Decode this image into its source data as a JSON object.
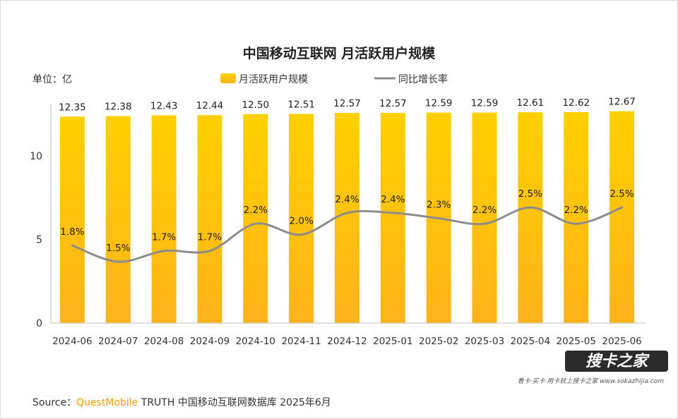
{
  "title": "中国移动互联网 月活跃用户规模",
  "unit_label": "单位：亿",
  "source": {
    "prefix": "Source：",
    "brand": "QuestMobile",
    "rest": " TRUTH 中国移动互联网数据库 2025年6月"
  },
  "watermark": {
    "logo_text": "搜卡之家",
    "sub_text": "看卡·买卡·用卡就上搜卡之家  www.sokazhijia.com"
  },
  "colors": {
    "bar_top": "#FFD000",
    "bar_bottom": "#FFB31A",
    "line": "#8C8C8C"
  },
  "chart_data": {
    "type": "bar",
    "title": "中国移动互联网 月活跃用户规模",
    "ylabel": "单位：亿",
    "ylim": [
      0,
      13
    ],
    "yticks": [
      "0",
      "5",
      "10"
    ],
    "grid": false,
    "legend_position": "top",
    "categories": [
      "2024-06",
      "2024-07",
      "2024-08",
      "2024-09",
      "2024-10",
      "2024-11",
      "2024-12",
      "2025-01",
      "2025-02",
      "2025-03",
      "2025-04",
      "2025-05",
      "2025-06"
    ],
    "series": [
      {
        "name": "月活跃用户规模",
        "kind": "bar",
        "values": [
          12.35,
          12.38,
          12.43,
          12.44,
          12.5,
          12.51,
          12.57,
          12.57,
          12.59,
          12.59,
          12.61,
          12.62,
          12.67
        ],
        "labels": [
          "12.35",
          "12.38",
          "12.43",
          "12.44",
          "12.50",
          "12.51",
          "12.57",
          "12.57",
          "12.59",
          "12.59",
          "12.61",
          "12.62",
          "12.67"
        ]
      },
      {
        "name": "同比增长率",
        "kind": "line",
        "values": [
          1.8,
          1.5,
          1.7,
          1.7,
          2.2,
          2.0,
          2.4,
          2.4,
          2.3,
          2.2,
          2.5,
          2.2,
          2.5
        ],
        "labels": [
          "1.8%",
          "1.5%",
          "1.7%",
          "1.7%",
          "2.2%",
          "2.0%",
          "2.4%",
          "2.4%",
          "2.3%",
          "2.2%",
          "2.5%",
          "2.2%",
          "2.5%"
        ]
      }
    ]
  }
}
